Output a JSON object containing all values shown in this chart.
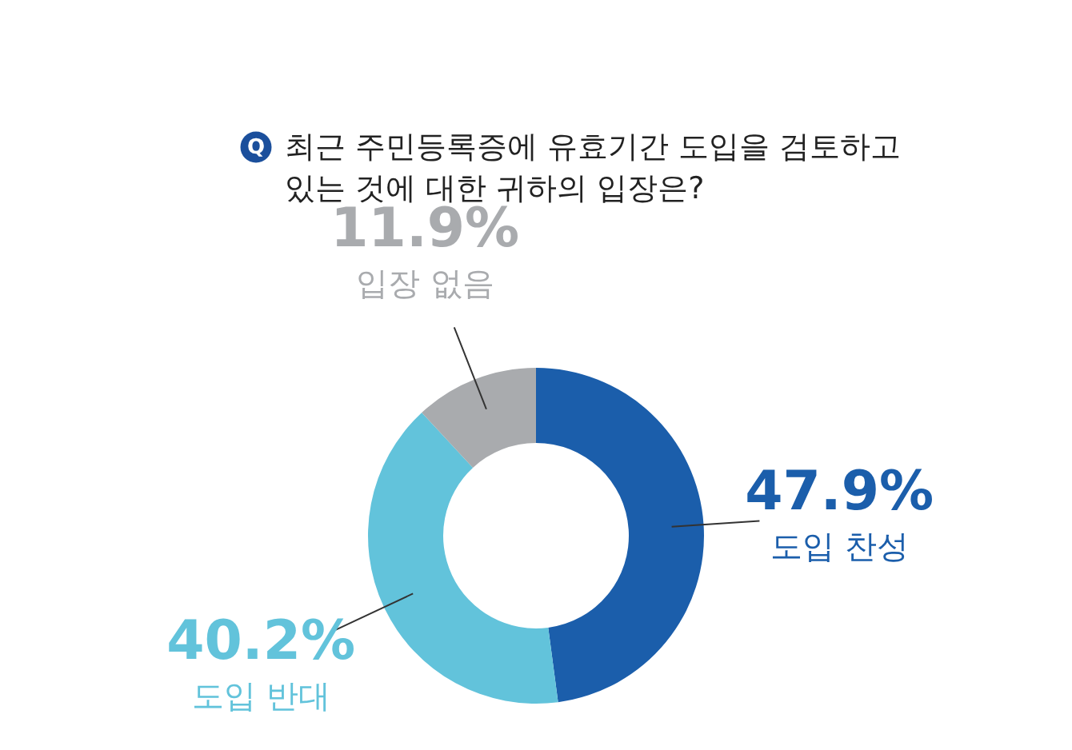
{
  "chart_data": {
    "type": "donut",
    "title": "최근 주민등록증에 유효기간 도입을 검토하고 있는 것에 대한 귀하의 입장은?",
    "annotations": [
      "Q"
    ],
    "categories": [
      "도입 찬성",
      "도입 반대",
      "입장 없음"
    ],
    "values": [
      47.9,
      40.2,
      11.9
    ],
    "value_labels": [
      "47.9%",
      "40.2%",
      "11.9%"
    ],
    "colors": [
      "#1b5eab",
      "#62c3db",
      "#a9abae"
    ]
  }
}
